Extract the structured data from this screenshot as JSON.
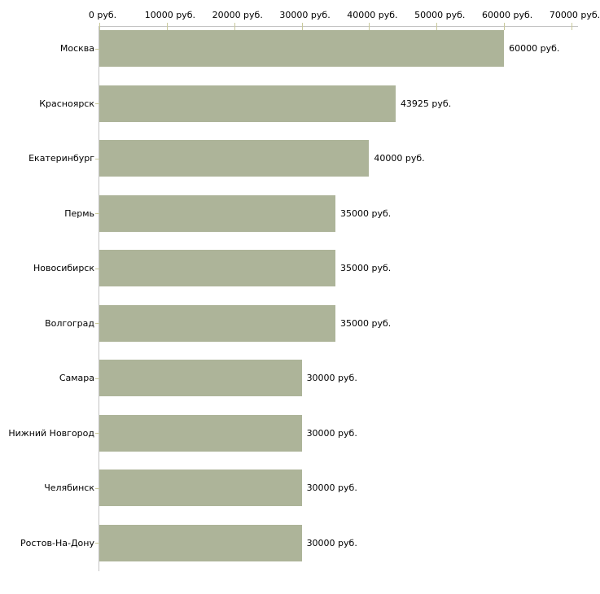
{
  "chart_data": {
    "type": "bar",
    "orientation": "horizontal",
    "title": "",
    "xlabel": "",
    "ylabel": "",
    "categories": [
      "Москва",
      "Красноярск",
      "Екатеринбург",
      "Пермь",
      "Новосибирск",
      "Волгоград",
      "Самара",
      "Нижний Новгород",
      "Челябинск",
      "Ростов-На-Дону"
    ],
    "values": [
      60000,
      43925,
      40000,
      35000,
      35000,
      35000,
      30000,
      30000,
      30000,
      30000
    ],
    "value_labels": [
      "60000 руб.",
      "43925 руб.",
      "40000 руб.",
      "35000 руб.",
      "35000 руб.",
      "35000 руб.",
      "30000 руб.",
      "30000 руб.",
      "30000 руб.",
      "30000 руб."
    ],
    "xlim": [
      0,
      70000
    ],
    "x_ticks": [
      0,
      10000,
      20000,
      30000,
      40000,
      50000,
      60000,
      70000
    ],
    "x_tick_labels": [
      "0 руб.",
      "10000 руб.",
      "20000 руб.",
      "30000 руб.",
      "40000 руб.",
      "50000 руб.",
      "60000 руб.",
      "70000 руб."
    ],
    "axis_position": "top",
    "grid": false,
    "legend": false,
    "colors": {
      "bar": "#adb499",
      "axis_line": "#c3c3c3",
      "tick": "#c9c99b",
      "text": "#000000",
      "background": "#ffffff"
    }
  }
}
